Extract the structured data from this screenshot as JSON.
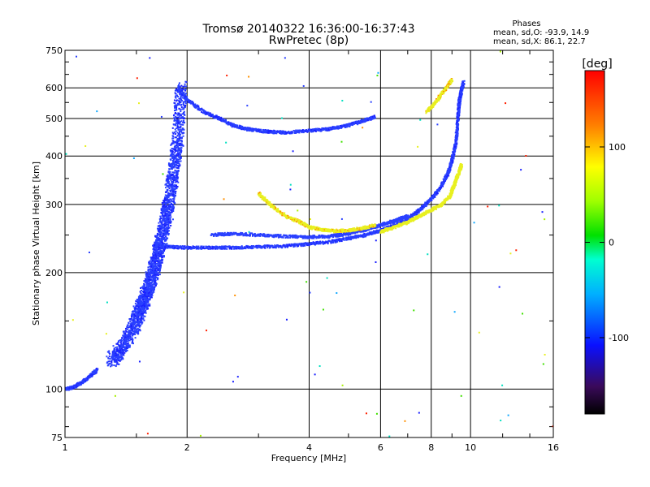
{
  "chart_data": {
    "type": "scatter",
    "title": "Tromsø 20140322 16:36:00-16:37:43",
    "subtitle": "RwPretec (8p)",
    "xlabel": "Frequency [MHz]",
    "ylabel": "Stationary phase Virtual Height [km]",
    "x_scale": "log",
    "y_scale": "log",
    "xlim": [
      1,
      16
    ],
    "ylim": [
      75,
      750
    ],
    "x_ticks": [
      "1",
      "2",
      "4",
      "6",
      "8",
      "10",
      "16"
    ],
    "y_ticks": [
      "75",
      "100",
      "200",
      "300",
      "400",
      "500",
      "600",
      "750"
    ],
    "grid": true,
    "stats": {
      "heading": "Phases",
      "line_o": "mean, sd,O: -93.9, 14.9",
      "line_x": "mean, sd,X:  86.1, 22.7"
    },
    "colorbar": {
      "label": "[deg]",
      "range": [
        -180,
        180
      ],
      "ticks": [
        "100",
        "0",
        "-100"
      ],
      "tick_values": [
        100,
        0,
        -100
      ]
    },
    "colors": {
      "o_mode": "#1a3cff",
      "x_mode": "#d8f01a"
    },
    "traces": [
      {
        "mode": "O",
        "phase": -100,
        "x": [
          1.0,
          1.05,
          1.1,
          1.15,
          1.2
        ],
        "y": [
          100,
          101,
          104,
          108,
          112
        ]
      },
      {
        "mode": "O",
        "phase": -100,
        "x": [
          1.3,
          1.4,
          1.5,
          1.55,
          1.6,
          1.65,
          1.7,
          1.75,
          1.8,
          1.85,
          1.9,
          1.93
        ],
        "y": [
          118,
          130,
          150,
          165,
          180,
          200,
          225,
          260,
          300,
          360,
          440,
          600
        ]
      },
      {
        "mode": "O",
        "phase": -100,
        "x": [
          1.9,
          2.0,
          2.2,
          2.4,
          2.6,
          2.8,
          3.0,
          3.2,
          3.5
        ],
        "y": [
          600,
          560,
          520,
          500,
          480,
          470,
          465,
          462,
          460
        ]
      },
      {
        "mode": "O",
        "phase": -100,
        "x": [
          3.5,
          4.0,
          4.5,
          5.0,
          5.5,
          5.8
        ],
        "y": [
          460,
          465,
          470,
          480,
          495,
          505
        ]
      },
      {
        "mode": "O",
        "phase": -100,
        "x": [
          1.65,
          1.8,
          2.0,
          2.3,
          2.6,
          3.0,
          3.5,
          4.0,
          4.5,
          5.0,
          5.5,
          6.0,
          6.5,
          7.0,
          7.5
        ],
        "y": [
          235,
          233,
          232,
          232,
          232,
          233,
          234,
          237,
          240,
          245,
          250,
          257,
          265,
          275,
          290
        ]
      },
      {
        "mode": "O",
        "phase": -100,
        "x": [
          7.5,
          8.0,
          8.4,
          8.8,
          9.0,
          9.2,
          9.3
        ],
        "y": [
          290,
          310,
          330,
          360,
          390,
          430,
          490
        ]
      },
      {
        "mode": "O",
        "phase": -100,
        "x": [
          9.3,
          9.35,
          9.4,
          9.5,
          9.6
        ],
        "y": [
          490,
          530,
          560,
          590,
          620
        ]
      },
      {
        "mode": "O",
        "phase": -90,
        "x": [
          2.3,
          2.6,
          3.0,
          3.5,
          4.0,
          4.5,
          5.0,
          5.5,
          6.0,
          6.5,
          7.0
        ],
        "y": [
          250,
          252,
          250,
          248,
          247,
          248,
          252,
          258,
          265,
          272,
          280
        ]
      },
      {
        "mode": "X",
        "phase": 90,
        "x": [
          3.0,
          3.2,
          3.5,
          3.8,
          4.0,
          4.3,
          4.6,
          5.0,
          5.4,
          5.8
        ],
        "y": [
          320,
          300,
          280,
          270,
          262,
          258,
          256,
          257,
          260,
          265
        ]
      },
      {
        "mode": "X",
        "phase": 80,
        "x": [
          6.0,
          6.5,
          7.0,
          7.5,
          8.0,
          8.5,
          8.9,
          9.1,
          9.3,
          9.5
        ],
        "y": [
          255,
          262,
          270,
          280,
          290,
          300,
          315,
          335,
          355,
          380
        ]
      },
      {
        "mode": "X",
        "phase": 90,
        "x": [
          7.8,
          8.2,
          8.6,
          9.0
        ],
        "y": [
          520,
          550,
          590,
          630
        ]
      }
    ]
  }
}
